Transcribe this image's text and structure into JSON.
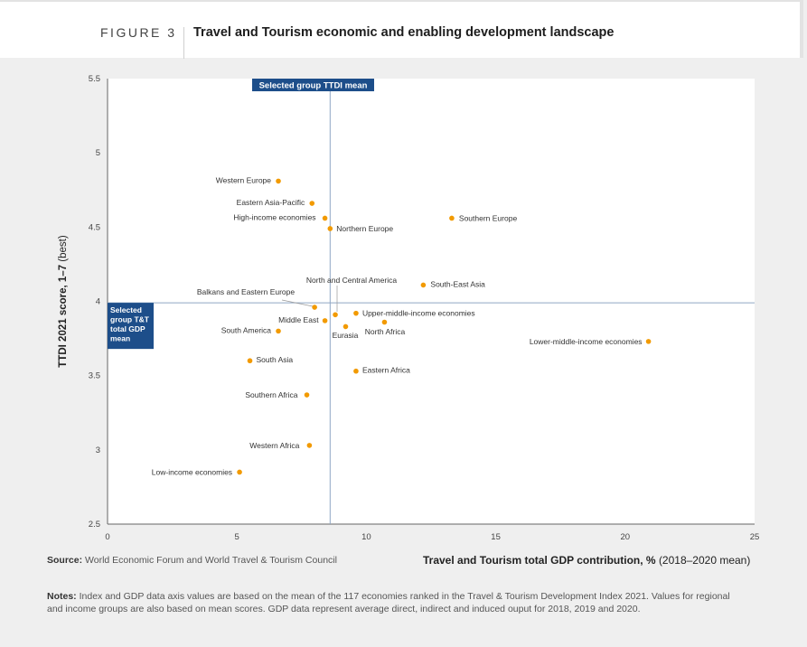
{
  "header": {
    "figure_label": "FIGURE 3",
    "title": "Travel and Tourism economic and enabling development landscape"
  },
  "footer": {
    "source_label": "Source:",
    "source_text": "World Economic Forum and World Travel & Tourism Council",
    "xaxis_title_bold": "Travel and Tourism total GDP contribution, %",
    "xaxis_title_note": "(2018–2020 mean)",
    "notes_label": "Notes:",
    "notes_text": "Index and GDP data axis values are based on the mean of the 117 economies ranked in the Travel & Tourism Development Index 2021. Values for regional and income groups are also based on mean scores. GDP data represent average direct, indirect and induced ouput for 2018, 2019 and 2020."
  },
  "colors": {
    "point": "#f29a00",
    "mean_line": "#8fa6c4",
    "mean_box": "#1d4e8a"
  },
  "chart_data": {
    "type": "scatter",
    "xlabel": "Travel and Tourism total GDP contribution, % (2018–2020 mean)",
    "ylabel": "TTDI 2021 score, 1–7 (best)",
    "ylabel_bold": "TTDI 2021 score, 1–7",
    "ylabel_note": "(best)",
    "xlim": [
      0,
      25
    ],
    "ylim": [
      2.5,
      5.5
    ],
    "xticks": [
      "0",
      "5",
      "10",
      "15",
      "20",
      "25"
    ],
    "yticks": [
      "2.5",
      "3",
      "3.5",
      "4",
      "4.5",
      "5",
      "5.5"
    ],
    "mean_x": 8.6,
    "mean_y": 3.99,
    "mean_x_label": "Selected group TTDI mean",
    "mean_y_label": [
      "Selected",
      "group T&T",
      "total GDP",
      "mean"
    ],
    "points": [
      {
        "label": "Western Europe",
        "x": 6.6,
        "y": 4.81
      },
      {
        "label": "Eastern Asia-Pacific",
        "x": 7.9,
        "y": 4.66
      },
      {
        "label": "High-income economies",
        "x": 8.4,
        "y": 4.56
      },
      {
        "label": "Southern Europe",
        "x": 13.3,
        "y": 4.56
      },
      {
        "label": "Northern Europe",
        "x": 8.6,
        "y": 4.49
      },
      {
        "label": "South-East Asia",
        "x": 12.2,
        "y": 4.11
      },
      {
        "label": "North and Central America",
        "x": 8.8,
        "y": 3.91
      },
      {
        "label": "Balkans and Eastern Europe",
        "x": 8.0,
        "y": 3.96
      },
      {
        "label": "Upper-middle-income economies",
        "x": 9.6,
        "y": 3.92
      },
      {
        "label": "Middle East",
        "x": 8.4,
        "y": 3.87
      },
      {
        "label": "North Africa",
        "x": 10.7,
        "y": 3.86
      },
      {
        "label": "Eurasia",
        "x": 9.2,
        "y": 3.83
      },
      {
        "label": "South America",
        "x": 6.6,
        "y": 3.8
      },
      {
        "label": "Lower-middle-income economies",
        "x": 20.9,
        "y": 3.73
      },
      {
        "label": "South Asia",
        "x": 5.5,
        "y": 3.6
      },
      {
        "label": "Eastern Africa",
        "x": 9.6,
        "y": 3.53
      },
      {
        "label": "Southern Africa",
        "x": 7.7,
        "y": 3.37
      },
      {
        "label": "Western Africa",
        "x": 7.8,
        "y": 3.03
      },
      {
        "label": "Low-income economies",
        "x": 5.1,
        "y": 2.85
      }
    ]
  }
}
